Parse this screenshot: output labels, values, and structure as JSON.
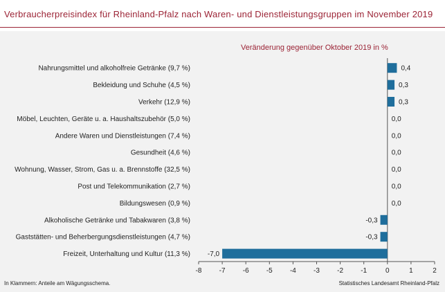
{
  "title": "Verbraucherpreisindex für Rheinland-Pfalz nach Waren- und Dienstleistungsgruppen im November 2019",
  "subtitle": "Veränderung  gegenüber Oktober 2019 in %",
  "footnote": "In Klammern: Anteile am Wägungsschema.",
  "source": "Statistisches Landesamt Rheinland-Pfalz",
  "colors": {
    "bar": "#1f6e9c",
    "accent": "#9b2335",
    "background": "#f2f2f2"
  },
  "chart_data": {
    "type": "bar",
    "orientation": "horizontal",
    "categories": [
      "Nahrungsmittel und alkoholfreie Getränke (9,7 %)",
      "Bekleidung und Schuhe (4,5 %)",
      "Verkehr (12,9 %)",
      "Möbel, Leuchten, Geräte u. a. Haushaltszubehör (5,0 %)",
      "Andere Waren und Dienstleistungen (7,4 %)",
      "Gesundheit (4,6 %)",
      "Wohnung, Wasser, Strom, Gas u. a. Brennstoffe (32,5 %)",
      "Post und Telekommunikation (2,7 %)",
      "Bildungswesen (0,9 %)",
      "Alkoholische Getränke und Tabakwaren (3,8 %)",
      "Gaststätten- und Beherbergungsdienstleistungen (4,7 %)",
      "Freizeit, Unterhaltung und Kultur (11,3 %)"
    ],
    "values": [
      0.4,
      0.3,
      0.3,
      0.0,
      0.0,
      0.0,
      0.0,
      0.0,
      0.0,
      -0.3,
      -0.3,
      -7.0
    ],
    "data_labels": [
      "0,4",
      "0,3",
      "0,3",
      "0,0",
      "0,0",
      "0,0",
      "0,0",
      "0,0",
      "0,0",
      "-0,3",
      "-0,3",
      "-7,0"
    ],
    "xlim": [
      -8,
      2
    ],
    "xticks": [
      -8,
      -7,
      -6,
      -5,
      -4,
      -3,
      -2,
      -1,
      0,
      1,
      2
    ],
    "grid": false
  }
}
